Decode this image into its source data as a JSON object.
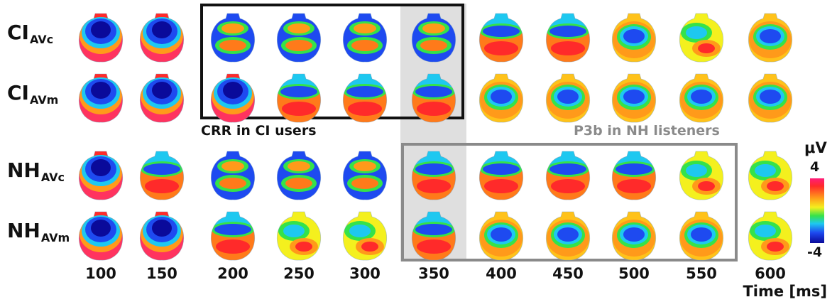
{
  "rows": [
    {
      "main": "CI",
      "sub": "AVc"
    },
    {
      "main": "CI",
      "sub": "AVm"
    },
    {
      "main": "NH",
      "sub": "AVc"
    },
    {
      "main": "NH",
      "sub": "AVm"
    }
  ],
  "times": [
    "100",
    "150",
    "200",
    "250",
    "300",
    "350",
    "400",
    "450",
    "500",
    "550",
    "600"
  ],
  "x_axis_title": "Time [ms]",
  "annotations": {
    "crr": "CRR in CI users",
    "p3b": "P3b in NH listeners"
  },
  "colorbar": {
    "unit": "μV",
    "max": "4",
    "min": "-4"
  },
  "colors": {
    "positive": "#ff2a2a",
    "neutral": "#35e24a",
    "negative": "#1e4af0",
    "crr_box": "#111111",
    "p3b_box": "#8a8a8a",
    "highlight": "#d9d9d9"
  },
  "maps": [
    [
      "negative-center",
      "negative-center",
      "split-bands",
      "split-bands",
      "split-bands",
      "split-bands",
      "blue-band",
      "blue-band",
      "blue-center",
      "mixed",
      "blue-center"
    ],
    [
      "negative-center",
      "negative-center",
      "negative-center",
      "blue-band",
      "blue-band",
      "blue-band",
      "blue-center",
      "blue-center",
      "blue-center",
      "blue-center",
      "blue-center"
    ],
    [
      "negative-center",
      "blue-band",
      "split-bands",
      "split-bands",
      "split-bands",
      "blue-band",
      "blue-band",
      "blue-band",
      "blue-band",
      "mixed",
      "mixed"
    ],
    [
      "negative-center",
      "negative-center",
      "blue-band",
      "mixed",
      "mixed",
      "blue-band",
      "blue-center",
      "blue-center",
      "blue-center",
      "blue-center",
      "mixed"
    ]
  ]
}
